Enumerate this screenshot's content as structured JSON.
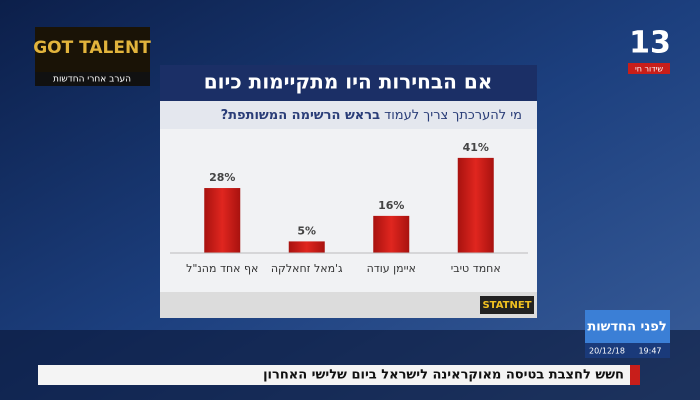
{
  "chart_data": {
    "type": "bar",
    "title": "אם הבחירות היו מתקיימות כיום",
    "subtitle": "מי להערכתך צריך לעמוד",
    "subtitle_bold": "בראש הרשימה המשותפת?",
    "categories": [
      "אף אחד מהנ\"ל",
      "ג'מאל זחאלקה",
      "איימן עודה",
      "אחמד טיבי"
    ],
    "values": [
      28,
      5,
      16,
      41
    ],
    "value_labels": [
      "28%",
      "5%",
      "16%",
      "41%"
    ],
    "color": "#d0201c",
    "source": "STATNET"
  },
  "channel": {
    "logo": "13",
    "live": "שידור חי"
  },
  "promo": {
    "title": "GOT TALENT",
    "subtitle": "הערב אחרי החדשות"
  },
  "show": {
    "name": "לפני החדשות",
    "date": "20/12/18",
    "time": "19:47"
  },
  "ticker": "חשש לחצבת בטיסה מאוקראינה לישראל ביום שלישי האחרון"
}
